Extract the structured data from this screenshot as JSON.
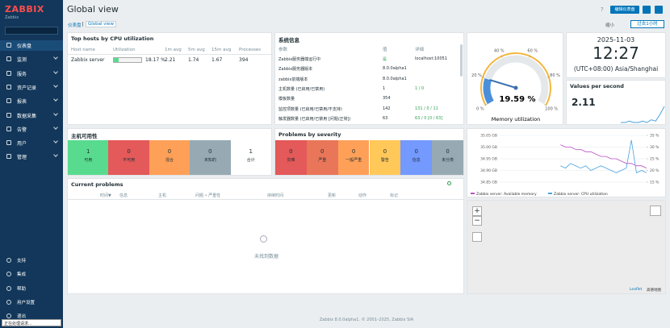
{
  "sidebar": {
    "logo": "ZABBIX",
    "server": "Zabbix",
    "menu": [
      "仪表盘",
      "监测",
      "服务",
      "资产记录",
      "报表",
      "数据采集",
      "告警",
      "用户",
      "管理"
    ],
    "bottom_menu": [
      "支持",
      "集成",
      "帮助",
      "用户设置",
      "退出"
    ],
    "status": "正在处理请求..."
  },
  "header": {
    "title": "Global view",
    "help": "?",
    "edit_button": "编辑仪表盘",
    "breadcrumbs": [
      "仪表盘",
      "Global view"
    ],
    "zoom_out": "缩小",
    "time_range": "过去1小时"
  },
  "top_hosts": {
    "title": "Top hosts by CPU utilization",
    "columns": [
      "Host name",
      "Utilization",
      "1m avg",
      "5m avg",
      "15m avg",
      "Processes"
    ],
    "rows": [
      {
        "host": "Zabbix server",
        "utilization": 18.17,
        "utilization_label": "18.17 %",
        "avg1": 2.21,
        "avg5": 1.74,
        "avg15": 1.67,
        "processes": 394
      }
    ]
  },
  "system_info": {
    "title": "系统信息",
    "columns": [
      "参数",
      "值",
      "详细"
    ],
    "rows": [
      [
        "Zabbix服务器端运行中",
        "是",
        "localhost:10051"
      ],
      [
        "Zabbix服务器版本",
        "8.0.0alpha1"
      ],
      [
        "zabbix前端版本",
        "8.0.0alpha1"
      ],
      [
        "主机数量 (已启用/已禁用)",
        "1",
        "1 / 0"
      ],
      [
        "模板数量",
        "354"
      ],
      [
        "监控项数量 (已启用/已禁用/不支持)",
        "142",
        "131 / 0 / 11"
      ],
      [
        "触发器数量 (已启用/已禁用 [问题/正常])",
        "63",
        "63 / 0 [0 / 63]"
      ]
    ]
  },
  "gauge": {
    "title": "Memory utilization",
    "value": 19.59,
    "value_label": "19.59 %",
    "scale": [
      {
        "value": 0,
        "label": "0 %"
      },
      {
        "value": 20,
        "label": "20 %"
      },
      {
        "value": 40,
        "label": "40 %"
      },
      {
        "value": 60,
        "label": "60 %"
      },
      {
        "value": 80,
        "label": "80 %"
      },
      {
        "value": 100,
        "label": "100 %"
      }
    ]
  },
  "clock": {
    "date": "2025-11-03",
    "time": "12:27",
    "timezone": "(UTC+08:00) Asia/Shanghai"
  },
  "values_per_second": {
    "title": "Values per second",
    "value": 2.11,
    "sparkline": [
      2.0,
      2.0,
      2.05,
      2.0,
      2.0,
      2.05,
      2.0,
      2.1,
      2.05,
      2.3,
      2.6
    ]
  },
  "host_availability": {
    "title": "主机可用性",
    "items": [
      {
        "count": 1,
        "label": "可用",
        "color": "#59db8f"
      },
      {
        "count": 0,
        "label": "不可用",
        "color": "#e45959"
      },
      {
        "count": 0,
        "label": "混合",
        "color": "#ffa059"
      },
      {
        "count": 0,
        "label": "未知的",
        "color": "#97aab3"
      },
      {
        "count": 1,
        "label": "合计",
        "color": "#ffffff"
      }
    ]
  },
  "problems_by_severity": {
    "title": "Problems by severity",
    "items": [
      {
        "count": 0,
        "label": "灾难",
        "color": "#e45959"
      },
      {
        "count": 0,
        "label": "严重",
        "color": "#e97659"
      },
      {
        "count": 0,
        "label": "一般严重",
        "color": "#ffa059"
      },
      {
        "count": 0,
        "label": "警告",
        "color": "#ffc859"
      },
      {
        "count": 0,
        "label": "信息",
        "color": "#7499ff"
      },
      {
        "count": 0,
        "label": "未分类",
        "color": "#97aab3"
      }
    ]
  },
  "graph": {
    "type": "line",
    "ylim": [
      34.85,
      35.05
    ],
    "yticks": [
      {
        "value": 35.05,
        "label": "35.05 GB"
      },
      {
        "value": 35.0,
        "label": "35.00 GB"
      },
      {
        "value": 34.95,
        "label": "34.95 GB"
      },
      {
        "value": 34.9,
        "label": "34.90 GB"
      },
      {
        "value": 34.85,
        "label": "34.85 GB"
      }
    ],
    "y2lim": [
      15,
      35
    ],
    "y2ticks": [
      {
        "value": 35,
        "label": "35 %"
      },
      {
        "value": 30,
        "label": "30 %"
      },
      {
        "value": 25,
        "label": "25 %"
      },
      {
        "value": 20,
        "label": "20 %"
      },
      {
        "value": 15,
        "label": "15 %"
      }
    ],
    "series": [
      {
        "name": "Zabbix server: Available memory",
        "color": "#b94fc4",
        "values": [
          null,
          null,
          null,
          null,
          null,
          null,
          null,
          null,
          null,
          null,
          null,
          null,
          35.01,
          35.0,
          35.0,
          34.99,
          34.99,
          34.98,
          34.98,
          34.97,
          34.96,
          34.96,
          34.95,
          34.95,
          34.94,
          34.93,
          34.93,
          34.92,
          34.92,
          34.91
        ]
      },
      {
        "name": "Zabbix server: CPU utilization",
        "color": "#4aa3e0",
        "axis": "y2",
        "values": [
          null,
          null,
          null,
          null,
          null,
          null,
          null,
          null,
          null,
          null,
          null,
          null,
          22,
          21,
          23,
          22,
          21,
          22,
          20,
          21,
          22,
          21,
          20,
          19,
          20,
          21,
          33,
          19,
          20,
          19
        ]
      }
    ]
  },
  "current_problems": {
    "title": "Current problems",
    "columns": [
      "时间▼",
      "信息",
      "主机",
      "问题 • 严重性",
      "持续时间",
      "更新",
      "动作",
      "标记"
    ],
    "empty": "未找到数据"
  },
  "map": {
    "zoom_in": "+",
    "zoom_out": "−",
    "attribution": [
      "Leaflet",
      "高德地图"
    ]
  },
  "footer": "Zabbix 8.0.0alpha1. © 2001–2025, Zabbix SIA"
}
